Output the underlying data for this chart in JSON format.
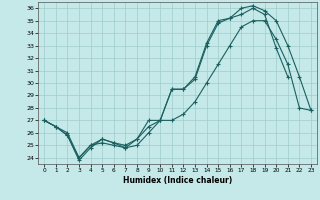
{
  "xlabel": "Humidex (Indice chaleur)",
  "background_color": "#c5e8e8",
  "grid_color": "#a0cccc",
  "line_color": "#1a6060",
  "ylim": [
    23.5,
    36.5
  ],
  "xlim": [
    -0.5,
    23.5
  ],
  "yticks": [
    24,
    25,
    26,
    27,
    28,
    29,
    30,
    31,
    32,
    33,
    34,
    35,
    36
  ],
  "xticks": [
    0,
    1,
    2,
    3,
    4,
    5,
    6,
    7,
    8,
    9,
    10,
    11,
    12,
    13,
    14,
    15,
    16,
    17,
    18,
    19,
    20,
    21,
    22,
    23
  ],
  "line1_x": [
    0,
    1,
    2,
    3,
    4,
    5,
    6,
    7,
    8,
    9,
    10,
    11,
    12,
    13,
    14,
    15,
    16,
    17,
    18,
    19,
    20,
    21
  ],
  "line1_y": [
    27.0,
    26.5,
    25.8,
    23.8,
    24.8,
    25.5,
    25.2,
    24.8,
    25.5,
    26.5,
    27.0,
    29.5,
    29.5,
    30.3,
    33.0,
    34.8,
    35.2,
    35.5,
    36.0,
    35.5,
    32.8,
    30.5
  ],
  "line2_x": [
    0,
    1,
    2,
    3,
    4,
    5,
    6,
    7,
    8,
    9,
    10,
    11,
    12,
    13,
    14,
    15,
    16,
    17,
    18,
    19,
    20,
    21,
    22,
    23
  ],
  "line2_y": [
    27.0,
    26.5,
    25.8,
    24.0,
    25.0,
    25.5,
    25.2,
    25.0,
    25.5,
    27.0,
    27.0,
    29.5,
    29.5,
    30.5,
    33.2,
    35.0,
    35.2,
    36.0,
    36.2,
    35.8,
    35.0,
    33.0,
    30.5,
    27.8
  ],
  "line3_x": [
    0,
    1,
    2,
    3,
    4,
    5,
    6,
    7,
    8,
    9,
    10,
    11,
    12,
    13,
    14,
    15,
    16,
    17,
    18,
    19,
    20,
    21,
    22,
    23
  ],
  "line3_y": [
    27.0,
    26.5,
    26.0,
    24.0,
    25.0,
    25.2,
    25.0,
    24.8,
    25.0,
    26.0,
    27.0,
    27.0,
    27.5,
    28.5,
    30.0,
    31.5,
    33.0,
    34.5,
    35.0,
    35.0,
    33.5,
    31.5,
    28.0,
    27.8
  ]
}
